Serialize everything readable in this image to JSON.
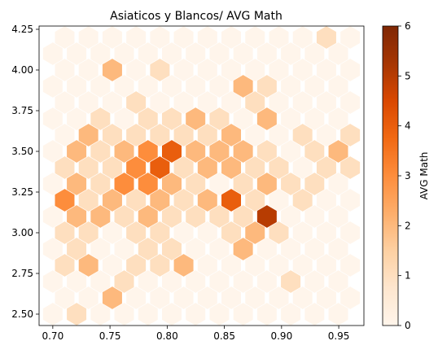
{
  "chart_data": {
    "type": "heatmap",
    "title": "Asiaticos y Blancos/ AVG Math",
    "xlabel": "",
    "ylabel": "",
    "xlim": [
      0.688,
      0.972
    ],
    "ylim": [
      2.43,
      4.27
    ],
    "xticks": [
      0.7,
      0.75,
      0.8,
      0.85,
      0.9,
      0.95
    ],
    "xtick_labels": [
      "0.70",
      "0.75",
      "0.80",
      "0.85",
      "0.90",
      "0.95"
    ],
    "yticks": [
      2.5,
      2.75,
      3.0,
      3.25,
      3.5,
      3.75,
      4.0,
      4.25
    ],
    "ytick_labels": [
      "2.50",
      "2.75",
      "3.00",
      "3.25",
      "3.50",
      "3.75",
      "4.00",
      "4.25"
    ],
    "colorbar": {
      "label": "AVG Math",
      "min": 0,
      "max": 6,
      "ticks": [
        0,
        1,
        2,
        3,
        4,
        5,
        6
      ],
      "tick_labels": [
        "0",
        "1",
        "2",
        "3",
        "4",
        "5",
        "6"
      ],
      "colormap": "Oranges",
      "colors": [
        "#fff5eb",
        "#fee6ce",
        "#fdd0a2",
        "#fdae6b",
        "#fd8d3c",
        "#f16913",
        "#d94801",
        "#a63603",
        "#7f2704"
      ]
    },
    "grid": false,
    "cells": [
      {
        "x": 0.7,
        "y": 2.5,
        "value": 0
      },
      {
        "x": 0.7,
        "y": 2.7,
        "value": 0
      },
      {
        "x": 0.7,
        "y": 2.9,
        "value": 0
      },
      {
        "x": 0.7,
        "y": 3.1,
        "value": 0
      },
      {
        "x": 0.7,
        "y": 3.3,
        "value": 0
      },
      {
        "x": 0.7,
        "y": 3.5,
        "value": 0
      },
      {
        "x": 0.7,
        "y": 3.7,
        "value": 0
      },
      {
        "x": 0.7,
        "y": 3.9,
        "value": 0
      },
      {
        "x": 0.7,
        "y": 4.1,
        "value": 0
      },
      {
        "x": 0.7104,
        "y": 2.6,
        "value": 0
      },
      {
        "x": 0.7104,
        "y": 2.8,
        "value": 1
      },
      {
        "x": 0.7104,
        "y": 3.0,
        "value": 1
      },
      {
        "x": 0.7104,
        "y": 3.2,
        "value": 3
      },
      {
        "x": 0.7104,
        "y": 3.4,
        "value": 1
      },
      {
        "x": 0.7104,
        "y": 3.6,
        "value": 0
      },
      {
        "x": 0.7104,
        "y": 3.8,
        "value": 0
      },
      {
        "x": 0.7104,
        "y": 4.0,
        "value": 0
      },
      {
        "x": 0.7104,
        "y": 4.2,
        "value": 0
      },
      {
        "x": 0.7208,
        "y": 2.5,
        "value": 1
      },
      {
        "x": 0.7208,
        "y": 2.7,
        "value": 0
      },
      {
        "x": 0.7208,
        "y": 2.9,
        "value": 1
      },
      {
        "x": 0.7208,
        "y": 3.1,
        "value": 2
      },
      {
        "x": 0.7208,
        "y": 3.3,
        "value": 2
      },
      {
        "x": 0.7208,
        "y": 3.5,
        "value": 2
      },
      {
        "x": 0.7208,
        "y": 3.7,
        "value": 0
      },
      {
        "x": 0.7208,
        "y": 3.9,
        "value": 0
      },
      {
        "x": 0.7208,
        "y": 4.1,
        "value": 0
      },
      {
        "x": 0.7312,
        "y": 2.6,
        "value": 0
      },
      {
        "x": 0.7312,
        "y": 2.8,
        "value": 2
      },
      {
        "x": 0.7312,
        "y": 3.0,
        "value": 1
      },
      {
        "x": 0.7312,
        "y": 3.2,
        "value": 1
      },
      {
        "x": 0.7312,
        "y": 3.4,
        "value": 1
      },
      {
        "x": 0.7312,
        "y": 3.6,
        "value": 2
      },
      {
        "x": 0.7312,
        "y": 3.8,
        "value": 0
      },
      {
        "x": 0.7312,
        "y": 4.0,
        "value": 0
      },
      {
        "x": 0.7312,
        "y": 4.2,
        "value": 0
      },
      {
        "x": 0.7416,
        "y": 2.5,
        "value": 0
      },
      {
        "x": 0.7416,
        "y": 2.7,
        "value": 0
      },
      {
        "x": 0.7416,
        "y": 2.9,
        "value": 0
      },
      {
        "x": 0.7416,
        "y": 3.1,
        "value": 2
      },
      {
        "x": 0.7416,
        "y": 3.3,
        "value": 1
      },
      {
        "x": 0.7416,
        "y": 3.5,
        "value": 1
      },
      {
        "x": 0.7416,
        "y": 3.7,
        "value": 1
      },
      {
        "x": 0.7416,
        "y": 3.9,
        "value": 0
      },
      {
        "x": 0.7416,
        "y": 4.1,
        "value": 0
      },
      {
        "x": 0.752,
        "y": 2.6,
        "value": 2
      },
      {
        "x": 0.752,
        "y": 2.8,
        "value": 0
      },
      {
        "x": 0.752,
        "y": 3.0,
        "value": 0
      },
      {
        "x": 0.752,
        "y": 3.2,
        "value": 2
      },
      {
        "x": 0.752,
        "y": 3.4,
        "value": 1
      },
      {
        "x": 0.752,
        "y": 3.6,
        "value": 1
      },
      {
        "x": 0.752,
        "y": 3.8,
        "value": 0
      },
      {
        "x": 0.752,
        "y": 4.0,
        "value": 2
      },
      {
        "x": 0.752,
        "y": 4.2,
        "value": 0
      },
      {
        "x": 0.7624,
        "y": 2.5,
        "value": 0
      },
      {
        "x": 0.7624,
        "y": 2.7,
        "value": 1
      },
      {
        "x": 0.7624,
        "y": 2.9,
        "value": 0
      },
      {
        "x": 0.7624,
        "y": 3.1,
        "value": 1
      },
      {
        "x": 0.7624,
        "y": 3.3,
        "value": 3
      },
      {
        "x": 0.7624,
        "y": 3.5,
        "value": 2
      },
      {
        "x": 0.7624,
        "y": 3.7,
        "value": 0
      },
      {
        "x": 0.7624,
        "y": 3.9,
        "value": 0
      },
      {
        "x": 0.7624,
        "y": 4.1,
        "value": 0
      },
      {
        "x": 0.7728,
        "y": 2.6,
        "value": 0
      },
      {
        "x": 0.7728,
        "y": 2.8,
        "value": 1
      },
      {
        "x": 0.7728,
        "y": 3.0,
        "value": 1
      },
      {
        "x": 0.7728,
        "y": 3.2,
        "value": 1
      },
      {
        "x": 0.7728,
        "y": 3.4,
        "value": 3
      },
      {
        "x": 0.7728,
        "y": 3.6,
        "value": 1
      },
      {
        "x": 0.7728,
        "y": 3.8,
        "value": 1
      },
      {
        "x": 0.7728,
        "y": 4.0,
        "value": 0
      },
      {
        "x": 0.7728,
        "y": 4.2,
        "value": 0
      },
      {
        "x": 0.7832,
        "y": 2.5,
        "value": 0
      },
      {
        "x": 0.7832,
        "y": 2.7,
        "value": 0
      },
      {
        "x": 0.7832,
        "y": 2.9,
        "value": 1
      },
      {
        "x": 0.7832,
        "y": 3.1,
        "value": 2
      },
      {
        "x": 0.7832,
        "y": 3.3,
        "value": 3
      },
      {
        "x": 0.7832,
        "y": 3.5,
        "value": 3
      },
      {
        "x": 0.7832,
        "y": 3.7,
        "value": 1
      },
      {
        "x": 0.7832,
        "y": 3.9,
        "value": 0
      },
      {
        "x": 0.7832,
        "y": 4.1,
        "value": 0
      },
      {
        "x": 0.7936,
        "y": 2.6,
        "value": 0
      },
      {
        "x": 0.7936,
        "y": 2.8,
        "value": 1
      },
      {
        "x": 0.7936,
        "y": 3.0,
        "value": 1
      },
      {
        "x": 0.7936,
        "y": 3.2,
        "value": 2
      },
      {
        "x": 0.7936,
        "y": 3.4,
        "value": 4
      },
      {
        "x": 0.7936,
        "y": 3.6,
        "value": 1
      },
      {
        "x": 0.7936,
        "y": 3.8,
        "value": 0
      },
      {
        "x": 0.7936,
        "y": 4.0,
        "value": 1
      },
      {
        "x": 0.7936,
        "y": 4.2,
        "value": 0
      },
      {
        "x": 0.804,
        "y": 2.5,
        "value": 0
      },
      {
        "x": 0.804,
        "y": 2.7,
        "value": 0
      },
      {
        "x": 0.804,
        "y": 2.9,
        "value": 1
      },
      {
        "x": 0.804,
        "y": 3.1,
        "value": 1
      },
      {
        "x": 0.804,
        "y": 3.3,
        "value": 2
      },
      {
        "x": 0.804,
        "y": 3.5,
        "value": 4
      },
      {
        "x": 0.804,
        "y": 3.7,
        "value": 1
      },
      {
        "x": 0.804,
        "y": 3.9,
        "value": 0
      },
      {
        "x": 0.804,
        "y": 4.1,
        "value": 0
      },
      {
        "x": 0.8144,
        "y": 2.6,
        "value": 0
      },
      {
        "x": 0.8144,
        "y": 2.8,
        "value": 2
      },
      {
        "x": 0.8144,
        "y": 3.0,
        "value": 0
      },
      {
        "x": 0.8144,
        "y": 3.2,
        "value": 1
      },
      {
        "x": 0.8144,
        "y": 3.4,
        "value": 1
      },
      {
        "x": 0.8144,
        "y": 3.6,
        "value": 1
      },
      {
        "x": 0.8144,
        "y": 3.8,
        "value": 0
      },
      {
        "x": 0.8144,
        "y": 4.0,
        "value": 0
      },
      {
        "x": 0.8144,
        "y": 4.2,
        "value": 0
      },
      {
        "x": 0.8248,
        "y": 2.5,
        "value": 0
      },
      {
        "x": 0.8248,
        "y": 2.7,
        "value": 0
      },
      {
        "x": 0.8248,
        "y": 2.9,
        "value": 0
      },
      {
        "x": 0.8248,
        "y": 3.1,
        "value": 1
      },
      {
        "x": 0.8248,
        "y": 3.3,
        "value": 1
      },
      {
        "x": 0.8248,
        "y": 3.5,
        "value": 2
      },
      {
        "x": 0.8248,
        "y": 3.7,
        "value": 2
      },
      {
        "x": 0.8248,
        "y": 3.9,
        "value": 0
      },
      {
        "x": 0.8248,
        "y": 4.1,
        "value": 0
      },
      {
        "x": 0.8352,
        "y": 2.6,
        "value": 0
      },
      {
        "x": 0.8352,
        "y": 2.8,
        "value": 0
      },
      {
        "x": 0.8352,
        "y": 3.0,
        "value": 0
      },
      {
        "x": 0.8352,
        "y": 3.2,
        "value": 2
      },
      {
        "x": 0.8352,
        "y": 3.4,
        "value": 2
      },
      {
        "x": 0.8352,
        "y": 3.6,
        "value": 1
      },
      {
        "x": 0.8352,
        "y": 3.8,
        "value": 0
      },
      {
        "x": 0.8352,
        "y": 4.0,
        "value": 0
      },
      {
        "x": 0.8352,
        "y": 4.2,
        "value": 0
      },
      {
        "x": 0.8456,
        "y": 2.5,
        "value": 0
      },
      {
        "x": 0.8456,
        "y": 2.7,
        "value": 0
      },
      {
        "x": 0.8456,
        "y": 2.9,
        "value": 0
      },
      {
        "x": 0.8456,
        "y": 3.1,
        "value": 1
      },
      {
        "x": 0.8456,
        "y": 3.3,
        "value": 0
      },
      {
        "x": 0.8456,
        "y": 3.5,
        "value": 2
      },
      {
        "x": 0.8456,
        "y": 3.7,
        "value": 1
      },
      {
        "x": 0.8456,
        "y": 3.9,
        "value": 0
      },
      {
        "x": 0.8456,
        "y": 4.1,
        "value": 0
      },
      {
        "x": 0.856,
        "y": 2.6,
        "value": 0
      },
      {
        "x": 0.856,
        "y": 2.8,
        "value": 0
      },
      {
        "x": 0.856,
        "y": 3.0,
        "value": 1
      },
      {
        "x": 0.856,
        "y": 3.2,
        "value": 4
      },
      {
        "x": 0.856,
        "y": 3.4,
        "value": 2
      },
      {
        "x": 0.856,
        "y": 3.6,
        "value": 2
      },
      {
        "x": 0.856,
        "y": 3.8,
        "value": 0
      },
      {
        "x": 0.856,
        "y": 4.0,
        "value": 0
      },
      {
        "x": 0.856,
        "y": 4.2,
        "value": 0
      },
      {
        "x": 0.8664,
        "y": 2.5,
        "value": 0
      },
      {
        "x": 0.8664,
        "y": 2.7,
        "value": 0
      },
      {
        "x": 0.8664,
        "y": 2.9,
        "value": 2
      },
      {
        "x": 0.8664,
        "y": 3.1,
        "value": 1
      },
      {
        "x": 0.8664,
        "y": 3.3,
        "value": 1
      },
      {
        "x": 0.8664,
        "y": 3.5,
        "value": 2
      },
      {
        "x": 0.8664,
        "y": 3.7,
        "value": 0
      },
      {
        "x": 0.8664,
        "y": 3.9,
        "value": 2
      },
      {
        "x": 0.8664,
        "y": 4.1,
        "value": 0
      },
      {
        "x": 0.8768,
        "y": 2.6,
        "value": 0
      },
      {
        "x": 0.8768,
        "y": 2.8,
        "value": 0
      },
      {
        "x": 0.8768,
        "y": 3.0,
        "value": 2
      },
      {
        "x": 0.8768,
        "y": 3.2,
        "value": 1
      },
      {
        "x": 0.8768,
        "y": 3.4,
        "value": 1
      },
      {
        "x": 0.8768,
        "y": 3.6,
        "value": 0
      },
      {
        "x": 0.8768,
        "y": 3.8,
        "value": 1
      },
      {
        "x": 0.8768,
        "y": 4.0,
        "value": 0
      },
      {
        "x": 0.8768,
        "y": 4.2,
        "value": 0
      },
      {
        "x": 0.8872,
        "y": 2.5,
        "value": 0
      },
      {
        "x": 0.8872,
        "y": 2.7,
        "value": 0
      },
      {
        "x": 0.8872,
        "y": 2.9,
        "value": 0
      },
      {
        "x": 0.8872,
        "y": 3.1,
        "value": 5
      },
      {
        "x": 0.8872,
        "y": 3.3,
        "value": 2
      },
      {
        "x": 0.8872,
        "y": 3.5,
        "value": 1
      },
      {
        "x": 0.8872,
        "y": 3.7,
        "value": 2
      },
      {
        "x": 0.8872,
        "y": 3.9,
        "value": 1
      },
      {
        "x": 0.8872,
        "y": 4.1,
        "value": 0
      },
      {
        "x": 0.8976,
        "y": 2.6,
        "value": 0
      },
      {
        "x": 0.8976,
        "y": 2.8,
        "value": 0
      },
      {
        "x": 0.8976,
        "y": 3.0,
        "value": 1
      },
      {
        "x": 0.8976,
        "y": 3.2,
        "value": 0
      },
      {
        "x": 0.8976,
        "y": 3.4,
        "value": 1
      },
      {
        "x": 0.8976,
        "y": 3.6,
        "value": 0
      },
      {
        "x": 0.8976,
        "y": 3.8,
        "value": 0
      },
      {
        "x": 0.8976,
        "y": 4.0,
        "value": 0
      },
      {
        "x": 0.8976,
        "y": 4.2,
        "value": 0
      },
      {
        "x": 0.908,
        "y": 2.5,
        "value": 0
      },
      {
        "x": 0.908,
        "y": 2.7,
        "value": 1
      },
      {
        "x": 0.908,
        "y": 2.9,
        "value": 0
      },
      {
        "x": 0.908,
        "y": 3.1,
        "value": 0
      },
      {
        "x": 0.908,
        "y": 3.3,
        "value": 1
      },
      {
        "x": 0.908,
        "y": 3.5,
        "value": 0
      },
      {
        "x": 0.908,
        "y": 3.7,
        "value": 0
      },
      {
        "x": 0.908,
        "y": 3.9,
        "value": 0
      },
      {
        "x": 0.908,
        "y": 4.1,
        "value": 0
      },
      {
        "x": 0.9184,
        "y": 2.6,
        "value": 0
      },
      {
        "x": 0.9184,
        "y": 2.8,
        "value": 0
      },
      {
        "x": 0.9184,
        "y": 3.0,
        "value": 0
      },
      {
        "x": 0.9184,
        "y": 3.2,
        "value": 1
      },
      {
        "x": 0.9184,
        "y": 3.4,
        "value": 0
      },
      {
        "x": 0.9184,
        "y": 3.6,
        "value": 1
      },
      {
        "x": 0.9184,
        "y": 3.8,
        "value": 0
      },
      {
        "x": 0.9184,
        "y": 4.0,
        "value": 0
      },
      {
        "x": 0.9184,
        "y": 4.2,
        "value": 0
      },
      {
        "x": 0.9288,
        "y": 2.5,
        "value": 0
      },
      {
        "x": 0.9288,
        "y": 2.7,
        "value": 0
      },
      {
        "x": 0.9288,
        "y": 2.9,
        "value": 0
      },
      {
        "x": 0.9288,
        "y": 3.1,
        "value": 0
      },
      {
        "x": 0.9288,
        "y": 3.3,
        "value": 1
      },
      {
        "x": 0.9288,
        "y": 3.5,
        "value": 1
      },
      {
        "x": 0.9288,
        "y": 3.7,
        "value": 0
      },
      {
        "x": 0.9288,
        "y": 3.9,
        "value": 0
      },
      {
        "x": 0.9288,
        "y": 4.1,
        "value": 0
      },
      {
        "x": 0.9392,
        "y": 2.6,
        "value": 0
      },
      {
        "x": 0.9392,
        "y": 2.8,
        "value": 0
      },
      {
        "x": 0.9392,
        "y": 3.0,
        "value": 0
      },
      {
        "x": 0.9392,
        "y": 3.2,
        "value": 0
      },
      {
        "x": 0.9392,
        "y": 3.4,
        "value": 1
      },
      {
        "x": 0.9392,
        "y": 3.6,
        "value": 0
      },
      {
        "x": 0.9392,
        "y": 3.8,
        "value": 0
      },
      {
        "x": 0.9392,
        "y": 4.0,
        "value": 0
      },
      {
        "x": 0.9392,
        "y": 4.2,
        "value": 1
      },
      {
        "x": 0.9496,
        "y": 2.5,
        "value": 0
      },
      {
        "x": 0.9496,
        "y": 2.7,
        "value": 0
      },
      {
        "x": 0.9496,
        "y": 2.9,
        "value": 0
      },
      {
        "x": 0.9496,
        "y": 3.1,
        "value": 0
      },
      {
        "x": 0.9496,
        "y": 3.3,
        "value": 0
      },
      {
        "x": 0.9496,
        "y": 3.5,
        "value": 2
      },
      {
        "x": 0.9496,
        "y": 3.7,
        "value": 0
      },
      {
        "x": 0.9496,
        "y": 3.9,
        "value": 0
      },
      {
        "x": 0.9496,
        "y": 4.1,
        "value": 0
      },
      {
        "x": 0.96,
        "y": 2.6,
        "value": 0
      },
      {
        "x": 0.96,
        "y": 2.8,
        "value": 0
      },
      {
        "x": 0.96,
        "y": 3.0,
        "value": 0
      },
      {
        "x": 0.96,
        "y": 3.2,
        "value": 0
      },
      {
        "x": 0.96,
        "y": 3.4,
        "value": 1
      },
      {
        "x": 0.96,
        "y": 3.6,
        "value": 1
      },
      {
        "x": 0.96,
        "y": 3.8,
        "value": 0
      },
      {
        "x": 0.96,
        "y": 4.0,
        "value": 0
      },
      {
        "x": 0.96,
        "y": 4.2,
        "value": 0
      }
    ]
  }
}
